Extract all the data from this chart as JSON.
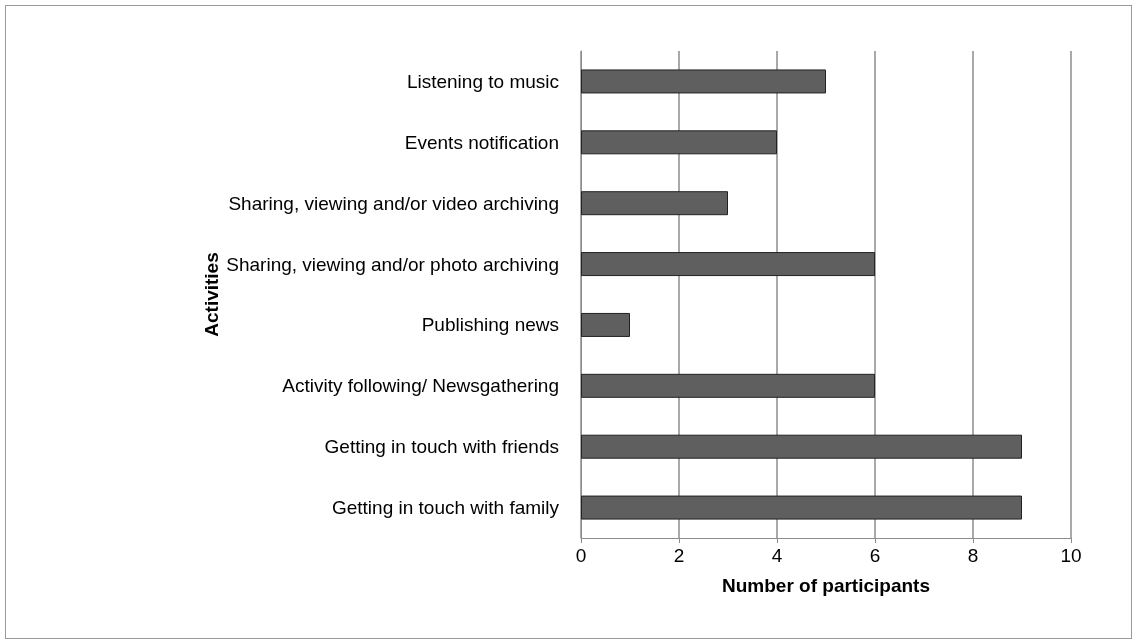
{
  "chart_data": {
    "type": "bar",
    "orientation": "horizontal",
    "xlabel": "Number of participants",
    "ylabel": "Activities",
    "categories": [
      "Listening to music",
      "Events notification",
      "Sharing, viewing and/or video archiving",
      "Sharing, viewing and/or photo archiving",
      "Publishing news",
      "Activity following/ Newsgathering",
      "Getting in touch with friends",
      "Getting in touch with family"
    ],
    "values": [
      5,
      4,
      3,
      6,
      1,
      6,
      9,
      9
    ],
    "color": "#5f5f5f",
    "xlim": [
      0,
      10
    ],
    "xticks": [
      0,
      2,
      4,
      6,
      8,
      10
    ],
    "grid": "x"
  }
}
